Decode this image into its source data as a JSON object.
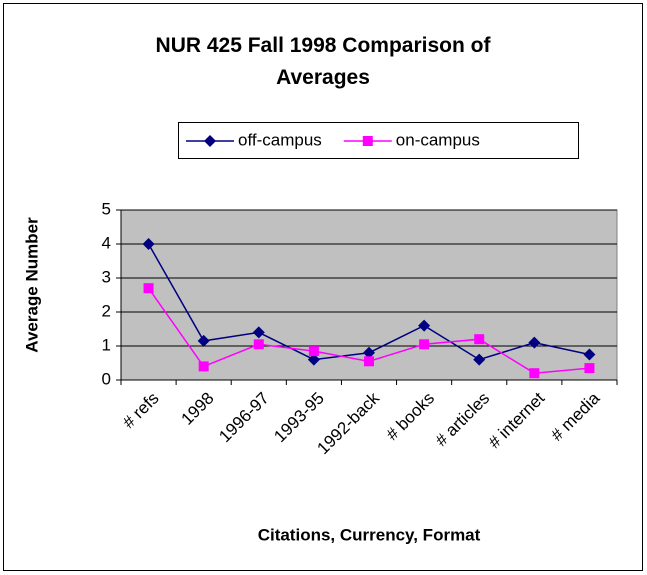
{
  "chart_data": {
    "type": "line",
    "title": "NUR 425 Fall 1998 Comparison of Averages",
    "x_label": "Citations, Currency, Format",
    "y_label": "Average Number",
    "categories": [
      "# refs",
      "1998",
      "1996-97",
      "1993-95",
      "1992-back",
      "# books",
      "# articles",
      "# internet",
      "# media"
    ],
    "series": [
      {
        "name": "off-campus",
        "color": "#000080",
        "marker": "diamond",
        "values": [
          4.0,
          1.15,
          1.4,
          0.6,
          0.8,
          1.6,
          0.6,
          1.1,
          0.75
        ]
      },
      {
        "name": "on-campus",
        "color": "#ff00ff",
        "marker": "square",
        "values": [
          2.7,
          0.4,
          1.05,
          0.85,
          0.55,
          1.05,
          1.2,
          0.2,
          0.35
        ]
      }
    ],
    "ylim": [
      0,
      5
    ],
    "yticks": [
      0,
      1,
      2,
      3,
      4,
      5
    ],
    "grid": true,
    "plot_background": "#c0c0c0",
    "legend": "top"
  }
}
